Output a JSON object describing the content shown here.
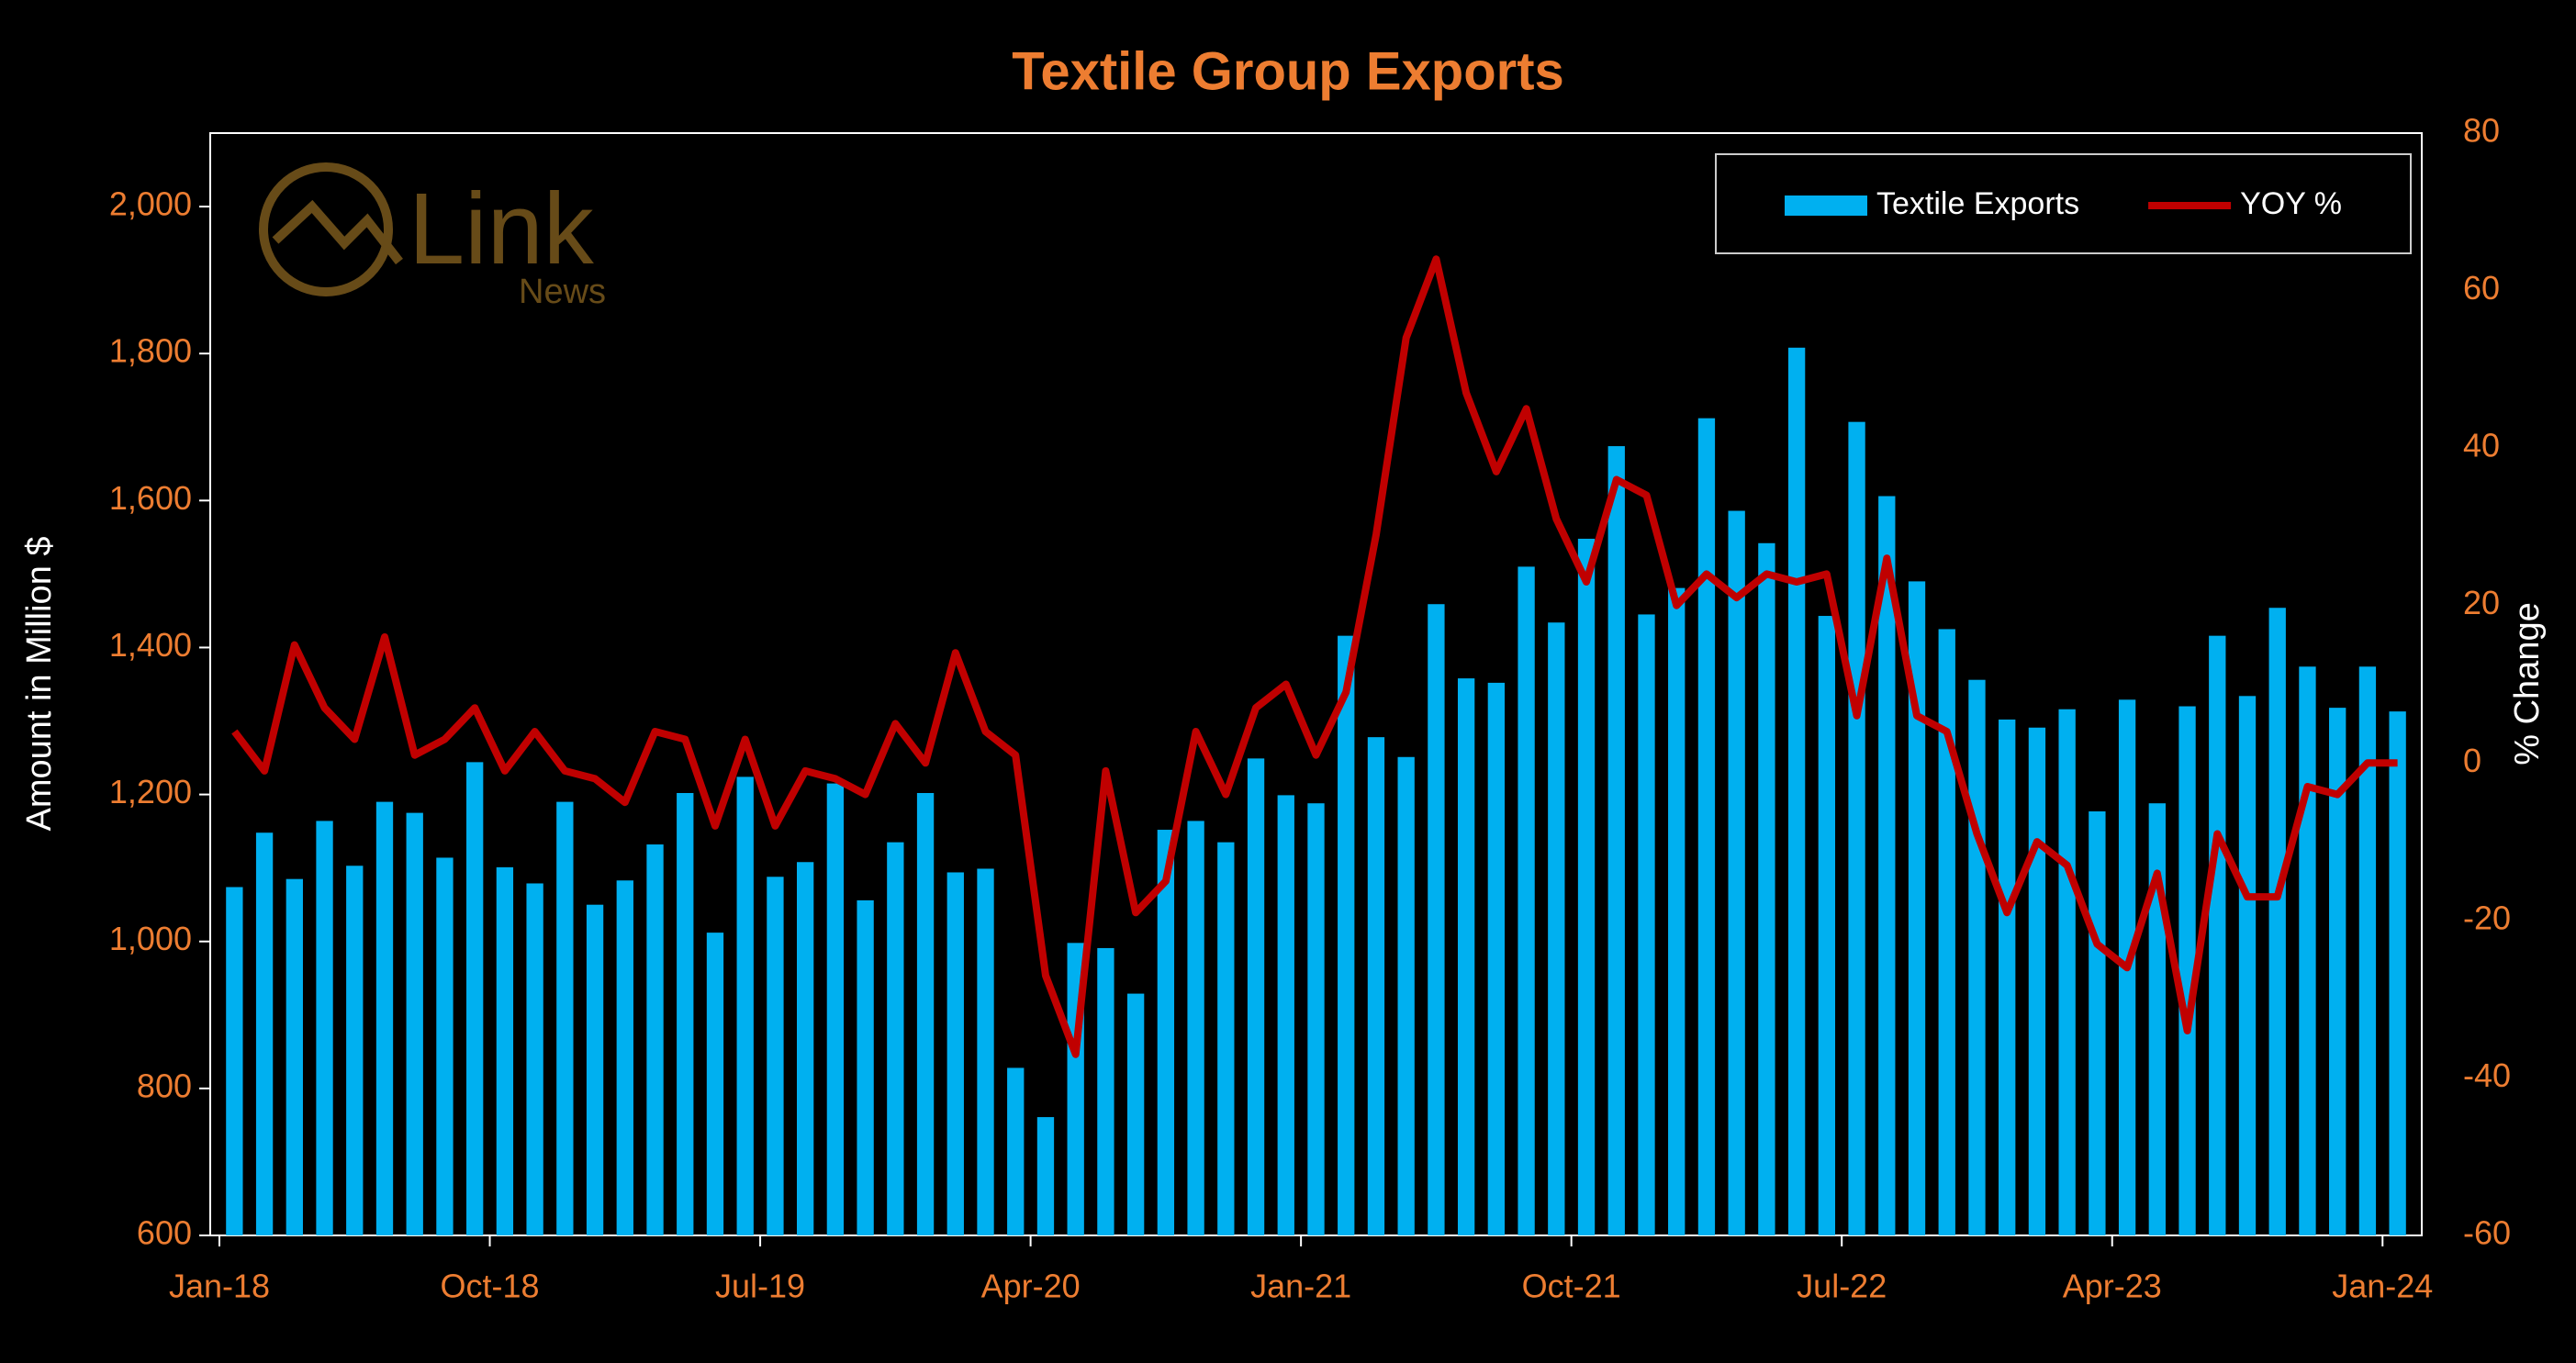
{
  "chart_data": {
    "type": "bar",
    "title": "Textile Group Exports",
    "logo": {
      "text": "Link",
      "subtext": "News"
    },
    "y_label": "Amount in Million $",
    "y2_label": "% Change",
    "legend_position": "upper right",
    "categories": [
      "Jan-18",
      null,
      null,
      null,
      null,
      null,
      null,
      null,
      null,
      "Oct-18",
      null,
      null,
      null,
      null,
      null,
      null,
      null,
      null,
      "Jul-19",
      null,
      null,
      null,
      null,
      null,
      null,
      null,
      null,
      "Apr-20",
      null,
      null,
      null,
      null,
      null,
      null,
      null,
      null,
      "Jan-21",
      null,
      null,
      null,
      null,
      null,
      null,
      null,
      null,
      "Oct-21",
      null,
      null,
      null,
      null,
      null,
      null,
      null,
      null,
      "Jul-22",
      null,
      null,
      null,
      null,
      null,
      null,
      null,
      null,
      "Apr-23",
      null,
      null,
      null,
      null,
      null,
      null,
      null,
      null,
      "Jan-24"
    ],
    "series": [
      {
        "name": "Textile Exports",
        "type": "bar",
        "color": "#00b0f0",
        "values": [
          1074,
          1148,
          1085,
          1164,
          1103,
          1190,
          1175,
          1114,
          1244,
          1101,
          1079,
          1190,
          1050,
          1083,
          1132,
          1202,
          1012,
          1224,
          1088,
          1108,
          1215,
          1056,
          1135,
          1202,
          1094,
          1099,
          828,
          761,
          998,
          991,
          929,
          1152,
          1164,
          1135,
          1249,
          1199,
          1188,
          1416,
          1278,
          1251,
          1459,
          1358,
          1352,
          1510,
          1434,
          1548,
          1674,
          1445,
          1481,
          1712,
          1586,
          1542,
          1808,
          1443,
          1707,
          1606,
          1490,
          1425,
          1356,
          1302,
          1291,
          1316,
          1177,
          1329,
          1188,
          1320,
          1416,
          1334,
          1454,
          1374,
          1318,
          1374,
          1313
        ]
      },
      {
        "name": "YOY %",
        "type": "line",
        "axis": "y2",
        "color": "#c00000",
        "values": [
          4,
          -1,
          15,
          7,
          3,
          16,
          1,
          3,
          7,
          -1,
          4,
          -1,
          -2,
          -5,
          4,
          3,
          -8,
          3,
          -8,
          -1,
          -2,
          -4,
          5,
          0,
          14,
          4,
          1,
          -27,
          -37,
          -1,
          -19,
          -15,
          4,
          -4,
          7,
          10,
          1,
          9,
          29,
          54,
          64,
          47,
          37,
          45,
          31,
          23,
          36,
          34,
          20,
          24,
          21,
          24,
          23,
          24,
          6,
          26,
          6,
          4,
          -9,
          -19,
          -10,
          -13,
          -23,
          -26,
          -14,
          -34,
          -9,
          -17,
          -17,
          -3,
          -4,
          0,
          0
        ]
      }
    ],
    "ylim": [
      600,
      2100
    ],
    "yticks": [
      600,
      800,
      {
        "value": 1000,
        "label": "1,000"
      },
      {
        "value": 1200,
        "label": "1,200"
      },
      {
        "value": 1400,
        "label": "1,400"
      },
      {
        "value": 1600,
        "label": "1,600"
      },
      {
        "value": 1800,
        "label": "1,800"
      },
      {
        "value": 2000,
        "label": "2,000"
      }
    ],
    "y2lim": [
      -60,
      80
    ],
    "y2ticks": [
      -60,
      -40,
      -20,
      0,
      20,
      40,
      60,
      80
    ],
    "tick_color": "#ed7d31"
  }
}
